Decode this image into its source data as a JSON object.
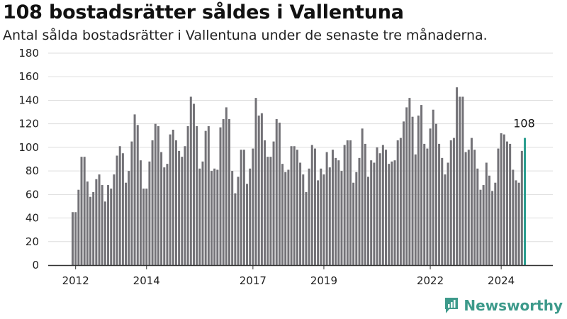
{
  "header": {
    "title": "108 bostadsrätter såldes i Vallentuna",
    "subtitle": "Antal sålda bostadsrätter i Vallentuna under de senaste tre månaderna."
  },
  "brand": {
    "name": "Newsworthy",
    "icon": "newsworthy-logo-icon",
    "color": "#3d9a8b"
  },
  "colors": {
    "bar": "#737277",
    "highlight": "#2a9d8f",
    "grid": "#dddddd",
    "axis": "#333333"
  },
  "chart_data": {
    "type": "bar",
    "ylim": [
      0,
      180
    ],
    "yticks": [
      0,
      20,
      40,
      60,
      80,
      100,
      120,
      140,
      160,
      180
    ],
    "xticks": [
      {
        "label": "2012",
        "index": 1
      },
      {
        "label": "2014",
        "index": 25
      },
      {
        "label": "2017",
        "index": 61
      },
      {
        "label": "2019",
        "index": 85
      },
      {
        "label": "2022",
        "index": 121
      },
      {
        "label": "2024",
        "index": 145
      }
    ],
    "values": [
      45,
      45,
      64,
      92,
      92,
      71,
      58,
      62,
      73,
      77,
      68,
      54,
      68,
      65,
      77,
      93,
      101,
      95,
      70,
      80,
      105,
      128,
      119,
      89,
      65,
      65,
      88,
      106,
      120,
      118,
      96,
      83,
      86,
      111,
      115,
      106,
      97,
      92,
      101,
      118,
      143,
      137,
      118,
      82,
      88,
      114,
      118,
      80,
      82,
      81,
      117,
      124,
      134,
      124,
      80,
      61,
      75,
      98,
      98,
      69,
      82,
      99,
      142,
      127,
      129,
      106,
      92,
      92,
      105,
      124,
      121,
      86,
      79,
      81,
      101,
      101,
      98,
      87,
      77,
      62,
      82,
      102,
      99,
      72,
      82,
      77,
      96,
      83,
      98,
      91,
      89,
      80,
      102,
      106,
      106,
      70,
      79,
      91,
      116,
      103,
      75,
      89,
      87,
      100,
      95,
      102,
      98,
      86,
      88,
      89,
      106,
      108,
      122,
      134,
      142,
      126,
      94,
      127,
      136,
      103,
      99,
      116,
      132,
      120,
      103,
      91,
      77,
      87,
      106,
      108,
      151,
      143,
      143,
      96,
      98,
      108,
      98,
      82,
      64,
      68,
      87,
      76,
      63,
      70,
      99,
      112,
      111,
      105,
      103,
      81,
      72,
      70,
      97,
      108
    ],
    "highlight_index": 153,
    "annotation": "108"
  }
}
